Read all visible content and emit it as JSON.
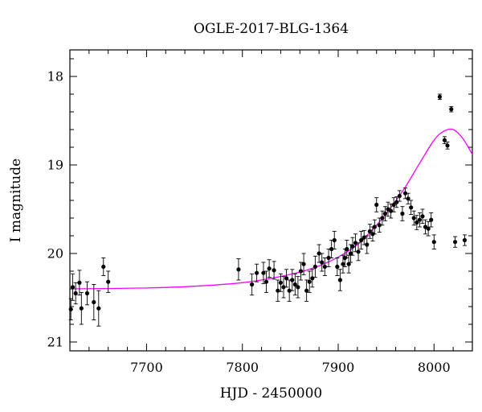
{
  "chart_data": {
    "type": "scatter",
    "title": "OGLE-2017-BLG-1364",
    "xlabel": "HJD - 2450000",
    "ylabel": "I magnitude",
    "xlim": [
      7620,
      8040
    ],
    "ylim": [
      21.1,
      17.7
    ],
    "y_inverted": true,
    "grid": false,
    "legend": "none",
    "x_major_ticks": [
      7700,
      7800,
      7900,
      8000
    ],
    "x_tick_labels": [
      "7700",
      "7800",
      "7900",
      "8000"
    ],
    "x_minor_step": 20,
    "y_major_ticks": [
      18,
      19,
      20,
      21
    ],
    "y_tick_labels": [
      "18",
      "19",
      "20",
      "21"
    ],
    "y_minor_step": 0.2,
    "colors": {
      "points": "#000000",
      "model": "#ff00ff",
      "axes": "#000000"
    },
    "series": [
      {
        "kind": "errorbar-points",
        "x": [
          7621,
          7623,
          7626,
          7630,
          7632,
          7638,
          7645,
          7650,
          7655,
          7660,
          7796,
          7810,
          7815,
          7822,
          7825,
          7828,
          7833,
          7837,
          7840,
          7843,
          7846,
          7849,
          7852,
          7855,
          7858,
          7861,
          7864,
          7867,
          7870,
          7873,
          7876,
          7880,
          7883,
          7886,
          7890,
          7893,
          7896,
          7899,
          7902,
          7905,
          7907,
          7909,
          7911,
          7913,
          7915,
          7918,
          7921,
          7924,
          7927,
          7930,
          7933,
          7936,
          7938,
          7940,
          7943,
          7946,
          7949,
          7952,
          7955,
          7958,
          7961,
          7964,
          7967,
          7970,
          7973,
          7976,
          7979,
          7982,
          7985,
          7988,
          7991,
          7994,
          7997,
          8000,
          8006,
          8011,
          8014,
          8018,
          8022,
          8032
        ],
        "y": [
          20.63,
          20.38,
          20.45,
          20.33,
          20.62,
          20.45,
          20.55,
          20.62,
          20.15,
          20.32,
          20.18,
          20.35,
          20.22,
          20.22,
          20.32,
          20.17,
          20.19,
          20.42,
          20.33,
          20.38,
          20.28,
          20.42,
          20.3,
          20.35,
          20.38,
          20.2,
          20.12,
          20.42,
          20.32,
          20.28,
          20.15,
          20.0,
          20.1,
          20.15,
          20.05,
          19.95,
          19.85,
          20.15,
          20.3,
          20.12,
          20.05,
          19.95,
          20.12,
          20.0,
          19.92,
          19.88,
          19.98,
          19.85,
          19.82,
          19.9,
          19.75,
          19.78,
          19.7,
          19.45,
          19.68,
          19.6,
          19.55,
          19.5,
          19.52,
          19.45,
          19.42,
          19.35,
          19.55,
          19.32,
          19.38,
          19.48,
          19.6,
          19.65,
          19.62,
          19.58,
          19.7,
          19.72,
          19.62,
          19.87,
          18.23,
          18.72,
          18.78,
          18.37,
          19.87,
          19.85
        ],
        "err": [
          0.12,
          0.15,
          0.12,
          0.14,
          0.18,
          0.13,
          0.2,
          0.2,
          0.1,
          0.12,
          0.12,
          0.12,
          0.1,
          0.12,
          0.12,
          0.1,
          0.1,
          0.12,
          0.1,
          0.12,
          0.1,
          0.12,
          0.12,
          0.12,
          0.12,
          0.1,
          0.12,
          0.12,
          0.12,
          0.1,
          0.12,
          0.1,
          0.1,
          0.1,
          0.1,
          0.1,
          0.1,
          0.1,
          0.12,
          0.1,
          0.1,
          0.1,
          0.1,
          0.1,
          0.1,
          0.1,
          0.1,
          0.1,
          0.08,
          0.1,
          0.08,
          0.08,
          0.08,
          0.08,
          0.08,
          0.08,
          0.08,
          0.08,
          0.08,
          0.08,
          0.06,
          0.06,
          0.08,
          0.06,
          0.06,
          0.08,
          0.08,
          0.08,
          0.08,
          0.08,
          0.08,
          0.08,
          0.08,
          0.08,
          0.03,
          0.04,
          0.04,
          0.03,
          0.06,
          0.06
        ]
      },
      {
        "kind": "model-curve",
        "x": [
          7620,
          7700,
          7750,
          7800,
          7830,
          7860,
          7880,
          7900,
          7920,
          7940,
          7955,
          7970,
          7985,
          8000,
          8010,
          8020,
          8030,
          8040
        ],
        "y": [
          20.4,
          20.39,
          20.37,
          20.33,
          20.28,
          20.21,
          20.14,
          20.04,
          19.9,
          19.68,
          19.48,
          19.25,
          18.98,
          18.72,
          18.62,
          18.6,
          18.7,
          18.88
        ]
      }
    ]
  }
}
